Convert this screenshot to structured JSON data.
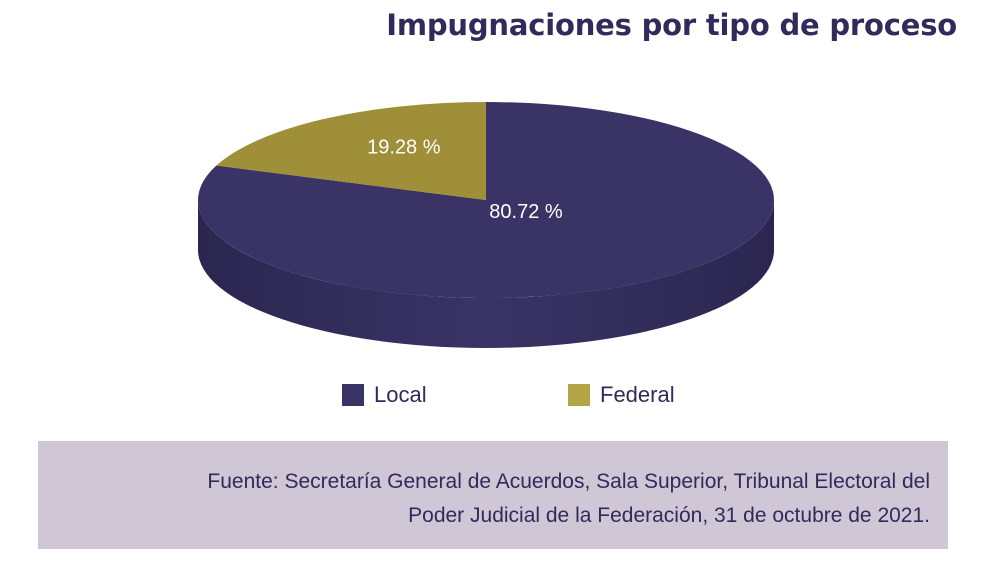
{
  "chart_data": {
    "type": "pie",
    "title": "Impugnaciones por tipo de proceso",
    "slices": [
      {
        "name": "Local",
        "value": 80.72,
        "label": "80.72 %",
        "color": "#3a3466"
      },
      {
        "name": "Federal",
        "value": 19.28,
        "label": "19.28 %",
        "color": "#9f8f38"
      }
    ],
    "legend_position": "bottom"
  },
  "source": {
    "line1": "Fuente: Secretaría General de Acuerdos, Sala Superior, Tribunal Electoral del",
    "line2": "Poder Judicial de la Federación, 31 de octubre de 2021."
  }
}
